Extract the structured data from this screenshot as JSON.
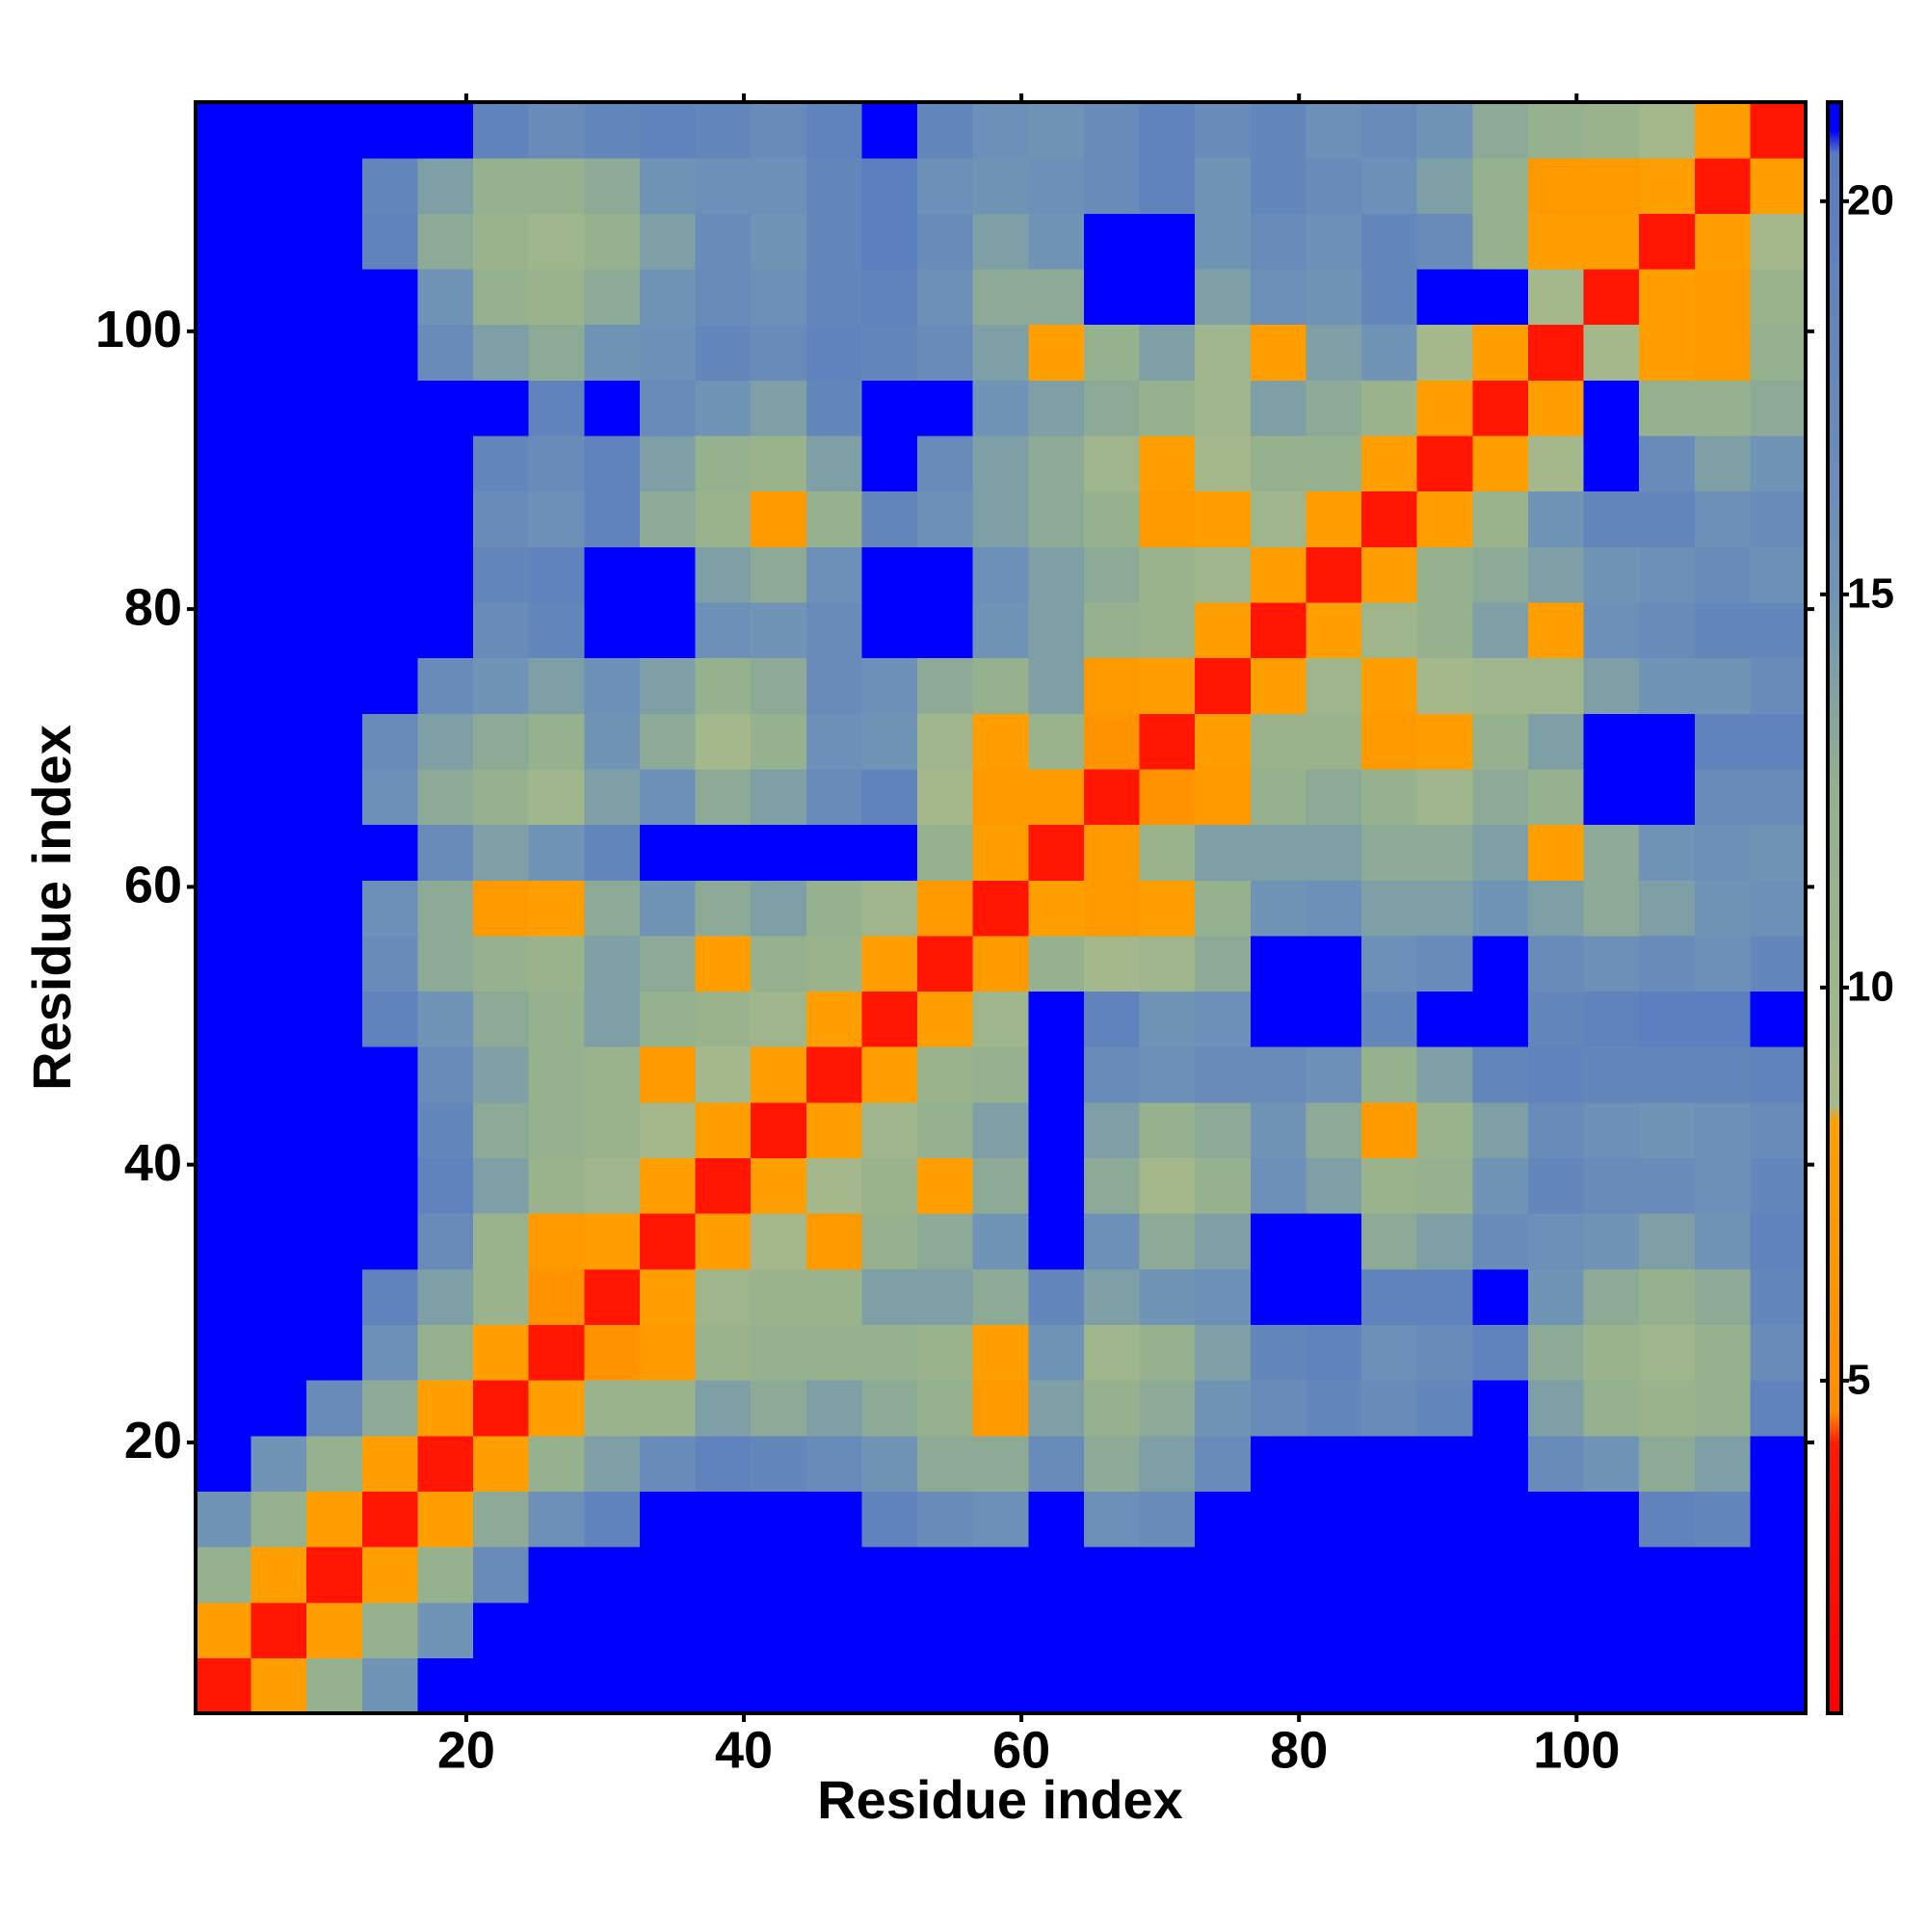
{
  "chart_data": {
    "type": "heatmap",
    "xlabel": "Residue index",
    "ylabel": "Residue index",
    "x_bins": [
      0.5,
      4.5,
      8.5,
      12.5,
      16.5,
      20.5,
      24.5,
      28.5,
      32.5,
      36.5,
      40.5,
      44.5,
      48.5,
      52.5,
      56.5,
      60.5,
      64.5,
      68.5,
      72.5,
      76.5,
      80.5,
      84.5,
      88.5,
      92.5,
      96.5,
      100.5,
      104.5,
      108.5,
      112.5,
      116.5
    ],
    "y_bins": [
      0.5,
      4.5,
      8.5,
      12.5,
      16.5,
      20.5,
      24.5,
      28.5,
      32.5,
      36.5,
      40.5,
      44.5,
      48.5,
      52.5,
      56.5,
      60.5,
      64.5,
      68.5,
      72.5,
      76.5,
      80.5,
      84.5,
      88.5,
      92.5,
      96.5,
      100.5,
      104.5,
      108.5,
      112.5,
      116.5
    ],
    "xlim": [
      0.5,
      116.5
    ],
    "ylim": [
      0.5,
      116.5
    ],
    "xticks": [
      20,
      40,
      60,
      80,
      100
    ],
    "yticks": [
      20,
      40,
      60,
      80,
      100
    ],
    "z": [
      [
        3.5,
        8,
        12,
        15,
        21,
        21,
        21,
        21,
        21,
        21,
        21,
        21,
        21,
        21,
        21,
        21,
        21,
        21,
        21,
        21,
        21,
        21,
        21,
        21,
        21,
        21,
        21,
        21,
        21
      ],
      [
        8,
        3.5,
        8,
        12,
        15,
        21,
        21,
        21,
        21,
        21,
        21,
        21,
        21,
        21,
        21,
        21,
        21,
        21,
        21,
        21,
        21,
        21,
        21,
        21,
        21,
        21,
        21,
        21,
        21
      ],
      [
        12,
        8,
        3.5,
        8,
        12,
        17,
        21,
        21,
        21,
        21,
        21,
        21,
        21,
        21,
        21,
        21,
        21,
        21,
        21,
        21,
        21,
        21,
        21,
        21,
        21,
        21,
        21,
        21,
        21
      ],
      [
        15,
        12,
        8,
        3.5,
        8,
        13,
        16,
        19,
        21,
        21,
        21,
        21,
        19,
        17,
        16,
        21,
        16,
        17,
        21,
        21,
        21,
        21,
        21,
        21,
        21,
        21,
        19,
        18,
        21
      ],
      [
        21,
        15,
        12,
        8,
        3.5,
        8,
        12,
        14,
        17,
        19,
        18,
        17,
        15,
        13,
        13,
        17,
        13,
        14,
        17,
        21,
        21,
        21,
        21,
        21,
        17,
        15,
        13,
        14,
        21
      ],
      [
        21,
        21,
        17,
        13,
        8,
        3.5,
        8,
        11,
        11,
        14,
        13,
        14,
        13,
        12,
        7,
        14,
        12,
        13,
        15,
        17,
        18,
        17,
        18,
        21,
        14,
        12,
        11,
        12,
        19
      ],
      [
        21,
        21,
        21,
        16,
        12,
        8,
        3.5,
        6,
        7,
        11,
        12,
        12,
        12,
        11,
        8,
        15,
        10,
        12,
        14,
        18,
        19,
        16,
        17,
        19,
        13,
        11,
        10,
        12,
        17
      ],
      [
        21,
        21,
        21,
        19,
        14,
        11,
        6,
        3.5,
        8,
        10,
        11,
        11,
        14,
        14,
        13,
        18,
        14,
        15,
        16,
        21,
        21,
        19,
        19,
        21,
        15,
        13,
        12,
        13,
        18
      ],
      [
        21,
        21,
        21,
        21,
        17,
        11,
        7,
        8,
        3.5,
        8,
        9,
        7,
        12,
        13,
        15,
        21,
        16,
        13,
        14,
        21,
        21,
        13,
        14,
        17,
        16,
        15,
        14,
        15,
        19
      ],
      [
        21,
        21,
        21,
        21,
        19,
        14,
        11,
        10,
        8,
        3.5,
        8,
        9,
        11,
        8,
        13,
        21,
        13,
        9,
        12,
        16,
        14,
        11,
        12,
        15,
        18,
        17,
        17,
        16,
        18
      ],
      [
        21,
        21,
        21,
        21,
        18,
        13,
        12,
        11,
        9,
        8,
        3.5,
        8,
        10,
        12,
        14,
        21,
        14,
        12,
        13,
        15,
        13,
        7,
        11,
        14,
        17,
        16,
        15,
        16,
        17
      ],
      [
        21,
        21,
        21,
        21,
        17,
        14,
        12,
        11,
        7,
        9,
        8,
        3.5,
        8,
        11,
        12,
        21,
        17,
        16,
        17,
        17,
        16,
        12,
        14,
        18,
        19,
        18,
        18,
        18,
        19
      ],
      [
        21,
        21,
        21,
        19,
        15,
        13,
        12,
        14,
        12,
        11,
        10,
        8,
        3.5,
        8,
        10,
        21,
        19,
        15,
        16,
        21,
        21,
        18,
        21,
        21,
        18,
        19,
        20,
        20,
        21
      ],
      [
        21,
        21,
        21,
        17,
        13,
        12,
        11,
        14,
        13,
        8,
        12,
        11,
        8,
        3.5,
        7,
        12,
        9,
        10,
        13,
        21,
        21,
        16,
        17,
        21,
        17,
        16,
        17,
        16,
        18
      ],
      [
        21,
        21,
        21,
        16,
        13,
        7,
        8,
        13,
        15,
        13,
        14,
        12,
        10,
        7,
        3.5,
        8,
        7,
        8,
        12,
        15,
        16,
        14,
        14,
        15,
        14,
        13,
        14,
        15,
        16
      ],
      [
        21,
        21,
        21,
        21,
        17,
        14,
        15,
        18,
        21,
        21,
        21,
        21,
        21,
        12,
        8,
        3.5,
        7,
        11,
        14,
        14,
        14,
        13,
        13,
        14,
        8,
        13,
        15,
        16,
        15
      ],
      [
        21,
        21,
        21,
        16,
        13,
        12,
        10,
        14,
        16,
        13,
        14,
        17,
        19,
        9,
        7,
        7,
        3.5,
        6,
        7,
        12,
        13,
        12,
        10,
        13,
        12,
        21,
        21,
        17,
        17
      ],
      [
        21,
        21,
        21,
        17,
        14,
        13,
        12,
        15,
        13,
        9,
        12,
        16,
        15,
        10,
        8,
        11,
        6,
        3.5,
        8,
        11,
        11,
        7,
        8,
        12,
        14,
        21,
        21,
        19,
        19
      ],
      [
        21,
        21,
        21,
        21,
        17,
        15,
        14,
        16,
        14,
        12,
        13,
        17,
        16,
        13,
        12,
        14,
        7,
        8,
        3.5,
        8,
        10,
        8,
        9,
        10,
        10,
        14,
        15,
        15,
        17
      ],
      [
        21,
        21,
        21,
        21,
        21,
        17,
        18,
        21,
        21,
        16,
        15,
        17,
        21,
        21,
        15,
        14,
        12,
        11,
        8,
        3.5,
        8,
        10,
        12,
        14,
        8,
        16,
        17,
        18,
        18
      ],
      [
        21,
        21,
        21,
        21,
        21,
        18,
        19,
        21,
        21,
        14,
        13,
        16,
        21,
        21,
        16,
        14,
        13,
        11,
        10,
        8,
        3.5,
        8,
        12,
        13,
        14,
        15,
        16,
        17,
        16
      ],
      [
        21,
        21,
        21,
        21,
        21,
        17,
        16,
        19,
        13,
        11,
        7,
        12,
        18,
        16,
        14,
        13,
        12,
        7,
        8,
        10,
        8,
        3.5,
        8,
        11,
        15,
        18,
        18,
        16,
        17
      ],
      [
        21,
        21,
        21,
        21,
        21,
        18,
        17,
        19,
        14,
        12,
        11,
        14,
        21,
        17,
        14,
        13,
        10,
        8,
        9,
        12,
        12,
        8,
        3.5,
        8,
        9,
        21,
        17,
        14,
        15
      ],
      [
        21,
        21,
        21,
        21,
        21,
        21,
        19,
        21,
        17,
        15,
        14,
        18,
        21,
        21,
        15,
        14,
        13,
        12,
        10,
        14,
        13,
        11,
        8,
        3.5,
        8,
        21,
        12,
        12,
        13
      ],
      [
        21,
        21,
        21,
        21,
        17,
        14,
        13,
        15,
        16,
        18,
        17,
        19,
        18,
        17,
        14,
        8,
        12,
        14,
        10,
        8,
        14,
        15,
        9,
        8,
        3.5,
        9,
        8,
        7,
        12
      ],
      [
        21,
        21,
        21,
        21,
        15,
        12,
        11,
        13,
        15,
        17,
        16,
        18,
        19,
        16,
        13,
        13,
        21,
        21,
        14,
        16,
        15,
        18,
        21,
        21,
        9,
        3.5,
        8,
        7,
        11
      ],
      [
        21,
        21,
        21,
        19,
        13,
        11,
        10,
        12,
        14,
        17,
        15,
        18,
        20,
        17,
        14,
        15,
        21,
        21,
        15,
        17,
        16,
        18,
        17,
        12,
        8,
        8,
        3.5,
        8,
        9
      ],
      [
        21,
        21,
        21,
        18,
        14,
        12,
        12,
        13,
        15,
        16,
        16,
        18,
        20,
        16,
        15,
        16,
        17,
        19,
        15,
        18,
        17,
        16,
        14,
        12,
        7,
        7,
        8,
        3.5,
        8
      ],
      [
        21,
        21,
        21,
        21,
        21,
        19,
        17,
        18,
        19,
        18,
        17,
        19,
        21,
        18,
        16,
        15,
        17,
        19,
        17,
        18,
        16,
        17,
        15,
        13,
        12,
        11,
        9,
        8,
        3.5
      ]
    ],
    "colorbar": {
      "zlim": [
        0.77,
        21.26
      ],
      "ticks": [
        5,
        10,
        15,
        20
      ],
      "colorscale": [
        {
          "value": 0.77,
          "color": "#ff0000"
        },
        {
          "value": 4.2,
          "color": "#ff1a00"
        },
        {
          "value": 4.6,
          "color": "#ff8c00"
        },
        {
          "value": 8.3,
          "color": "#ffa000"
        },
        {
          "value": 8.5,
          "color": "#a6b98a"
        },
        {
          "value": 12.5,
          "color": "#94b08e"
        },
        {
          "value": 15,
          "color": "#7094b6"
        },
        {
          "value": 20.6,
          "color": "#5a7cc0"
        },
        {
          "value": 20.9,
          "color": "#0000ff"
        }
      ]
    }
  }
}
